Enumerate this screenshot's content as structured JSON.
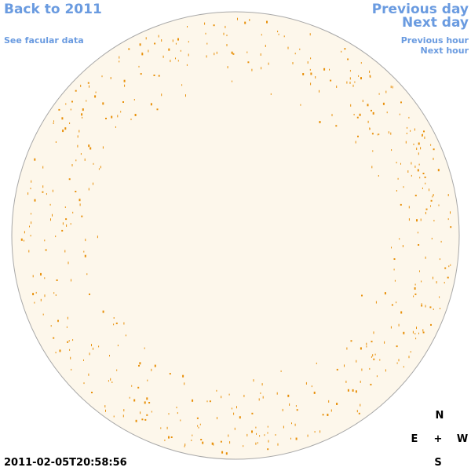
{
  "nav": {
    "back_year": "Back to 2011",
    "facular_link": "See facular data",
    "previous_day": "Previous day",
    "next_day": "Next day",
    "previous_hour": "Previous hour",
    "next_hour": "Next hour"
  },
  "timestamp": "2011-02-05T20:58:56",
  "compass": {
    "north": "N",
    "east": "E",
    "center": "+",
    "west": "W",
    "south": "S"
  }
}
